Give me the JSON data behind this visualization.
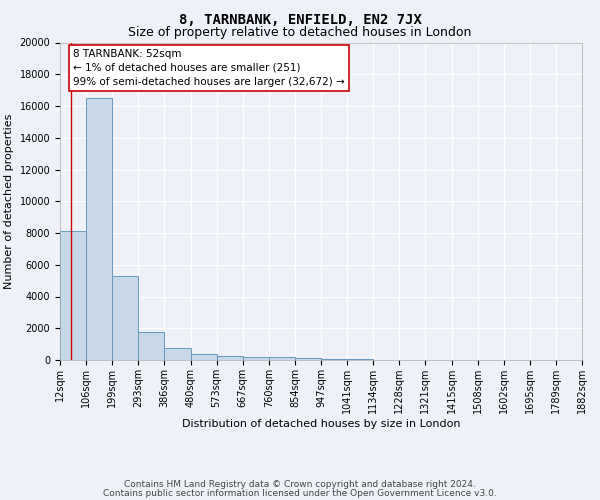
{
  "title": "8, TARNBANK, ENFIELD, EN2 7JX",
  "subtitle": "Size of property relative to detached houses in London",
  "xlabel": "Distribution of detached houses by size in London",
  "ylabel": "Number of detached properties",
  "bin_labels": [
    "12sqm",
    "106sqm",
    "199sqm",
    "293sqm",
    "386sqm",
    "480sqm",
    "573sqm",
    "667sqm",
    "760sqm",
    "854sqm",
    "947sqm",
    "1041sqm",
    "1134sqm",
    "1228sqm",
    "1321sqm",
    "1415sqm",
    "1508sqm",
    "1602sqm",
    "1695sqm",
    "1789sqm",
    "1882sqm"
  ],
  "bin_edges": [
    12,
    106,
    199,
    293,
    386,
    480,
    573,
    667,
    760,
    854,
    947,
    1041,
    1134,
    1228,
    1321,
    1415,
    1508,
    1602,
    1695,
    1789,
    1882
  ],
  "bar_heights": [
    8100,
    16500,
    5300,
    1750,
    750,
    350,
    250,
    200,
    200,
    150,
    80,
    50,
    30,
    20,
    15,
    10,
    8,
    5,
    4,
    3
  ],
  "bar_color": "#c8d8eb",
  "bar_edge_color": "#6699bb",
  "bar_linewidth": 0.7,
  "bg_color": "#eef2f8",
  "grid_color": "#ffffff",
  "red_line_x": 52,
  "annotation_text": "8 TARNBANK: 52sqm\n← 1% of detached houses are smaller (251)\n99% of semi-detached houses are larger (32,672) →",
  "annotation_box_color": "#ffffff",
  "annotation_box_edge": "#cc0000",
  "ylim": [
    0,
    20000
  ],
  "yticks": [
    0,
    2000,
    4000,
    6000,
    8000,
    10000,
    12000,
    14000,
    16000,
    18000,
    20000
  ],
  "footer_line1": "Contains HM Land Registry data © Crown copyright and database right 2024.",
  "footer_line2": "Contains public sector information licensed under the Open Government Licence v3.0.",
  "title_fontsize": 10,
  "subtitle_fontsize": 9,
  "tick_fontsize": 7,
  "ylabel_fontsize": 8,
  "xlabel_fontsize": 8,
  "annotation_fontsize": 7.5,
  "footer_fontsize": 6.5
}
